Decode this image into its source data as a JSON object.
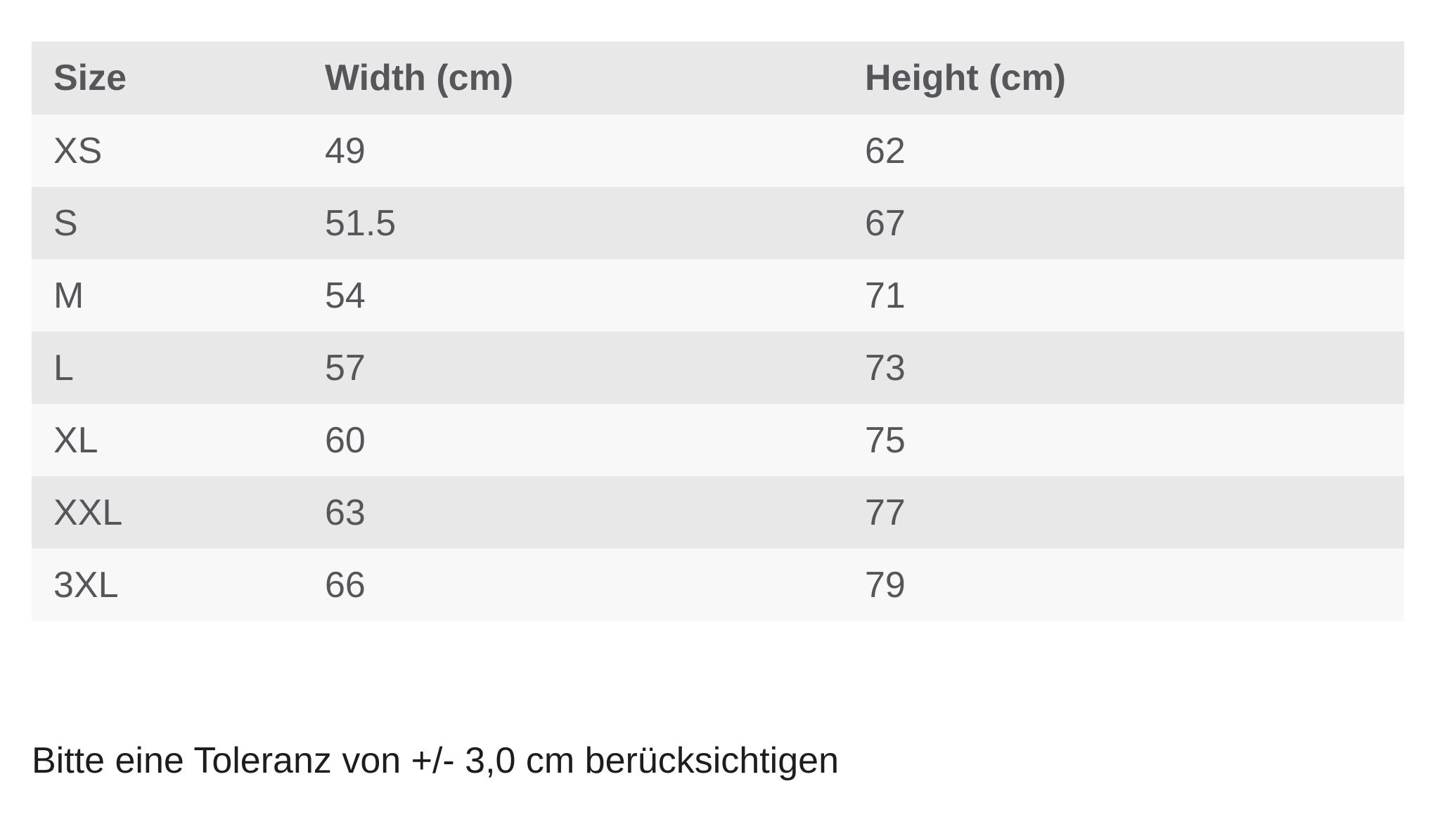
{
  "table": {
    "columns": [
      "Size",
      "Width (cm)",
      "Height (cm)"
    ],
    "rows": [
      {
        "size": "XS",
        "width": "49",
        "height": "62"
      },
      {
        "size": "S",
        "width": "51.5",
        "height": "67"
      },
      {
        "size": "M",
        "width": "54",
        "height": "71"
      },
      {
        "size": "L",
        "width": "57",
        "height": "73"
      },
      {
        "size": "XL",
        "width": "60",
        "height": "75"
      },
      {
        "size": "XXL",
        "width": "63",
        "height": "77"
      },
      {
        "size": "3XL",
        "width": "66",
        "height": "79"
      }
    ]
  },
  "note": "Bitte eine Toleranz von +/- 3,0 cm berücksichtigen",
  "colors": {
    "header_bg": "#e8e8e8",
    "row_light_bg": "#f8f8f8",
    "row_shade_bg": "#e8e8e8",
    "table_text": "#55565a",
    "note_text": "#1d1d1d",
    "page_bg": "#ffffff"
  },
  "chart_data": {
    "type": "table",
    "columns": [
      "Size",
      "Width (cm)",
      "Height (cm)"
    ],
    "rows": [
      [
        "XS",
        49,
        62
      ],
      [
        "S",
        51.5,
        67
      ],
      [
        "M",
        54,
        71
      ],
      [
        "L",
        57,
        73
      ],
      [
        "XL",
        60,
        75
      ],
      [
        "XXL",
        63,
        77
      ],
      [
        "3XL",
        66,
        79
      ]
    ],
    "note": "Bitte eine Toleranz von +/- 3,0 cm berücksichtigen",
    "layout": {
      "striped": true,
      "header_row": true,
      "grid": false
    }
  }
}
